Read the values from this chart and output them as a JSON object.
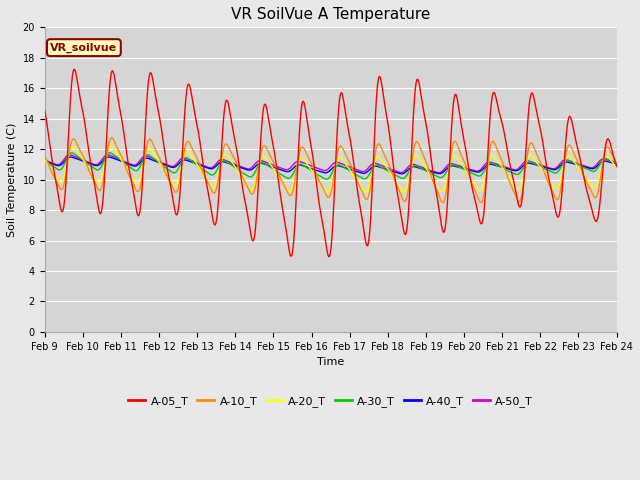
{
  "title": "VR SoilVue A Temperature",
  "ylabel": "Soil Temperature (C)",
  "xlabel": "Time",
  "annotation": "VR_soilvue",
  "ylim": [
    0,
    20
  ],
  "xlim": [
    0,
    15
  ],
  "fig_bg": "#e8e8e8",
  "plot_bg": "#d5d5d5",
  "grid_color": "#ffffff",
  "series_colors": {
    "A-05_T": "#ff0000",
    "A-10_T": "#ff8c00",
    "A-20_T": "#ffff00",
    "A-30_T": "#00cc00",
    "A-40_T": "#0000ff",
    "A-50_T": "#cc00cc"
  },
  "x_tick_labels": [
    "Feb 9",
    "Feb 10",
    "Feb 11",
    "Feb 12",
    "Feb 13",
    "Feb 14",
    "Feb 15",
    "Feb 16",
    "Feb 17",
    "Feb 18",
    "Feb 19",
    "Feb 20",
    "Feb 21",
    "Feb 22",
    "Feb 23",
    "Feb 24"
  ],
  "y_ticks": [
    0,
    2,
    4,
    6,
    8,
    10,
    12,
    14,
    16,
    18,
    20
  ],
  "num_points": 720,
  "title_fontsize": 11,
  "label_fontsize": 8,
  "tick_fontsize": 7,
  "legend_fontsize": 8,
  "lw": 1.0
}
